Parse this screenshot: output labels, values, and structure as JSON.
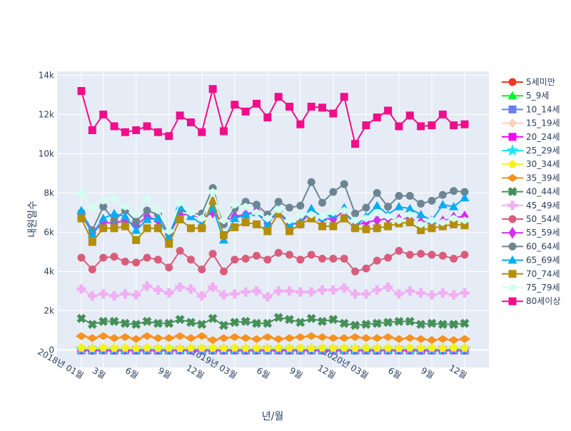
{
  "chart_data": {
    "type": "line",
    "title": "",
    "xlabel": "년/월",
    "ylabel": "내원일수",
    "ylim": [
      -900,
      14200
    ],
    "grid": true,
    "legend_position": "right",
    "x": [
      "2018-01",
      "2018-02",
      "2018-03",
      "2018-04",
      "2018-05",
      "2018-06",
      "2018-07",
      "2018-08",
      "2018-09",
      "2018-10",
      "2018-11",
      "2018-12",
      "2019-01",
      "2019-02",
      "2019-03",
      "2019-04",
      "2019-05",
      "2019-06",
      "2019-07",
      "2019-08",
      "2019-09",
      "2019-10",
      "2019-11",
      "2019-12",
      "2020-01",
      "2020-02",
      "2020-03",
      "2020-04",
      "2020-05",
      "2020-06",
      "2020-07",
      "2020-08",
      "2020-09",
      "2020-10",
      "2020-11",
      "2020-12"
    ],
    "x_ticks": [
      {
        "label": "2018년 01월",
        "index": 0
      },
      {
        "label": "3월",
        "index": 2
      },
      {
        "label": "6월",
        "index": 5
      },
      {
        "label": "9월",
        "index": 8
      },
      {
        "label": "12월",
        "index": 11
      },
      {
        "label": "2019년 03월",
        "index": 14
      },
      {
        "label": "6월",
        "index": 17
      },
      {
        "label": "9월",
        "index": 20
      },
      {
        "label": "12월",
        "index": 23
      },
      {
        "label": "2020년 03월",
        "index": 26
      },
      {
        "label": "6월",
        "index": 29
      },
      {
        "label": "9월",
        "index": 32
      },
      {
        "label": "12월",
        "index": 35
      }
    ],
    "y_ticks": [
      {
        "label": "0",
        "value": 0
      },
      {
        "label": "2k",
        "value": 2000
      },
      {
        "label": "4k",
        "value": 4000
      },
      {
        "label": "6k",
        "value": 6000
      },
      {
        "label": "8k",
        "value": 8000
      },
      {
        "label": "10k",
        "value": 10000
      },
      {
        "label": "12k",
        "value": 12000
      },
      {
        "label": "14k",
        "value": 14000
      }
    ],
    "series": [
      {
        "name": "5세미만",
        "color": "#f2361e",
        "marker": "circle",
        "values": [
          -40,
          -45,
          -35,
          -50,
          -40,
          -45,
          -40,
          -50,
          -45,
          -40,
          -40,
          -45,
          -40,
          -45,
          -40,
          -50,
          -40,
          -45,
          -40,
          -50,
          -45,
          -40,
          -40,
          -45,
          -40,
          -45,
          -40,
          -50,
          -40,
          -45,
          -40,
          -50,
          -45,
          -40,
          -40,
          -45
        ]
      },
      {
        "name": "5_9세",
        "color": "#00f52a",
        "marker": "triangle-up",
        "values": [
          -20,
          -25,
          -15,
          -30,
          -20,
          -25,
          -20,
          -30,
          -25,
          -20,
          -20,
          -25,
          -20,
          -25,
          -20,
          -30,
          -20,
          -25,
          -20,
          -30,
          -25,
          -20,
          -20,
          -25,
          -20,
          -25,
          -20,
          -30,
          -20,
          -25,
          -20,
          -30,
          -25,
          -20,
          -20,
          -25
        ]
      },
      {
        "name": "10_14세",
        "color": "#6b7df2",
        "marker": "square",
        "values": [
          -30,
          -35,
          -25,
          -40,
          -30,
          -35,
          -30,
          -40,
          -35,
          -30,
          -30,
          -35,
          -30,
          -35,
          -30,
          -40,
          -30,
          -35,
          -30,
          -40,
          -35,
          -30,
          -30,
          -35,
          -30,
          -35,
          -30,
          -40,
          -30,
          -35,
          -30,
          -40,
          -35,
          -30,
          -30,
          -35
        ]
      },
      {
        "name": "15_19세",
        "color": "#f7d2bf",
        "marker": "diamond",
        "values": [
          20,
          15,
          25,
          20,
          15,
          20,
          25,
          20,
          15,
          20,
          25,
          20,
          15,
          20,
          25,
          20,
          15,
          20,
          25,
          20,
          15,
          20,
          25,
          20,
          15,
          20,
          25,
          20,
          15,
          20,
          25,
          20,
          15,
          20,
          25,
          20
        ]
      },
      {
        "name": "20_24세",
        "color": "#f207ef",
        "marker": "square",
        "values": [
          0,
          -5,
          5,
          0,
          -5,
          0,
          5,
          0,
          -5,
          0,
          5,
          0,
          -5,
          0,
          5,
          0,
          -5,
          0,
          5,
          0,
          -5,
          0,
          5,
          0,
          -5,
          0,
          5,
          0,
          -5,
          0,
          5,
          0,
          -5,
          0,
          5,
          0
        ]
      },
      {
        "name": "25_29세",
        "color": "#18e8f5",
        "marker": "star",
        "values": [
          30,
          25,
          35,
          30,
          25,
          30,
          35,
          30,
          25,
          30,
          35,
          30,
          25,
          30,
          35,
          30,
          25,
          30,
          35,
          30,
          25,
          30,
          35,
          30,
          25,
          30,
          35,
          30,
          25,
          30,
          35,
          30,
          25,
          30,
          35,
          30
        ]
      },
      {
        "name": "30_34세",
        "color": "#f4f21e",
        "marker": "pentagon",
        "values": [
          100,
          80,
          110,
          90,
          100,
          80,
          110,
          90,
          100,
          80,
          110,
          90,
          100,
          80,
          110,
          90,
          100,
          80,
          110,
          90,
          100,
          80,
          110,
          90,
          100,
          80,
          110,
          90,
          100,
          80,
          110,
          90,
          100,
          80,
          110,
          90
        ]
      },
      {
        "name": "35_39세",
        "color": "#f69222",
        "marker": "diamond-wide",
        "values": [
          700,
          600,
          700,
          600,
          650,
          550,
          700,
          600,
          600,
          700,
          600,
          700,
          500,
          600,
          650,
          600,
          550,
          650,
          550,
          600,
          650,
          700,
          650,
          600,
          600,
          650,
          600,
          600,
          650,
          550,
          600,
          550,
          500,
          550,
          500,
          550
        ]
      },
      {
        "name": "40_44세",
        "color": "#459058",
        "marker": "cross",
        "values": [
          1600,
          1300,
          1450,
          1450,
          1350,
          1300,
          1450,
          1350,
          1350,
          1550,
          1400,
          1300,
          1600,
          1250,
          1400,
          1450,
          1350,
          1350,
          1650,
          1550,
          1400,
          1600,
          1450,
          1550,
          1350,
          1250,
          1300,
          1350,
          1400,
          1450,
          1450,
          1300,
          1350,
          1300,
          1300,
          1350
        ]
      },
      {
        "name": "45_49세",
        "color": "#f2aef2",
        "marker": "cross-x",
        "values": [
          3100,
          2750,
          2850,
          2750,
          2850,
          2800,
          3250,
          3050,
          2900,
          3200,
          3100,
          2750,
          3200,
          2800,
          2850,
          2950,
          3000,
          2700,
          3000,
          3000,
          2950,
          2950,
          3050,
          3050,
          3150,
          2850,
          2850,
          3050,
          3200,
          2850,
          3000,
          2900,
          2800,
          2900,
          2800,
          2900
        ]
      },
      {
        "name": "50_54세",
        "color": "#d95d7b",
        "marker": "circle",
        "values": [
          4700,
          4100,
          4700,
          4750,
          4500,
          4450,
          4700,
          4600,
          4200,
          5050,
          4600,
          4100,
          4900,
          4000,
          4600,
          4650,
          4800,
          4600,
          4950,
          4850,
          4600,
          4850,
          4650,
          4650,
          4650,
          4000,
          4150,
          4550,
          4700,
          5050,
          4850,
          4900,
          4850,
          4800,
          4650,
          4850
        ]
      },
      {
        "name": "55_59세",
        "color": "#d32ef2",
        "marker": "diamond-tall",
        "values": [
          6900,
          5950,
          6500,
          6450,
          6600,
          6350,
          6800,
          6600,
          5850,
          6900,
          6900,
          6700,
          7000,
          6500,
          6800,
          6900,
          7100,
          6450,
          7000,
          6400,
          6450,
          7050,
          6700,
          6650,
          7100,
          6350,
          6500,
          6600,
          6700,
          6650,
          6750,
          6500,
          6550,
          6550,
          6750,
          6800
        ]
      },
      {
        "name": "60_64세",
        "color": "#6d8592",
        "marker": "circle",
        "values": [
          7000,
          6100,
          7300,
          6600,
          7100,
          6550,
          7100,
          6900,
          5900,
          7150,
          6900,
          6950,
          8250,
          6400,
          7200,
          7550,
          7400,
          6900,
          7550,
          7250,
          7350,
          8550,
          7500,
          8050,
          8450,
          6950,
          7250,
          8000,
          7300,
          7850,
          7850,
          7450,
          7600,
          7900,
          8100,
          8050
        ]
      },
      {
        "name": "65_69세",
        "color": "#08acf2",
        "marker": "triangle-up",
        "values": [
          7100,
          5900,
          6700,
          6950,
          6800,
          6100,
          6650,
          6700,
          5750,
          7300,
          6800,
          6400,
          7250,
          5600,
          6700,
          6900,
          7000,
          6400,
          7200,
          6400,
          6500,
          7200,
          6750,
          6900,
          7250,
          6300,
          6800,
          7350,
          6900,
          7300,
          7200,
          6900,
          6600,
          7400,
          7300,
          7750
        ]
      },
      {
        "name": "70_74세",
        "color": "#b48e08",
        "marker": "square",
        "values": [
          6700,
          5500,
          6200,
          6200,
          6300,
          5600,
          6200,
          6200,
          5400,
          6650,
          6200,
          6200,
          7600,
          5850,
          6250,
          6500,
          6400,
          6050,
          6950,
          6050,
          6400,
          6700,
          6300,
          6300,
          6700,
          6200,
          6150,
          6200,
          6300,
          6450,
          6500,
          6100,
          6200,
          6300,
          6400,
          6350
        ]
      },
      {
        "name": "75_79세",
        "color": "#d4fff0",
        "marker": "diamond-wide",
        "values": [
          8000,
          7250,
          7600,
          7750,
          7300,
          6900,
          7700,
          7100,
          6050,
          7500,
          7000,
          6700,
          8050,
          6600,
          7400,
          7300,
          7000,
          6700,
          7150,
          6600,
          6900,
          6900,
          6800,
          7000,
          7100,
          6600,
          6700,
          7000,
          6800,
          6600,
          6900,
          6400,
          6600,
          6500,
          6700,
          6600
        ]
      },
      {
        "name": "80세이상",
        "color": "#f20d8a",
        "marker": "square",
        "values": [
          13200,
          11200,
          12000,
          11400,
          11100,
          11200,
          11400,
          11100,
          10900,
          11950,
          11600,
          11100,
          13300,
          11150,
          12500,
          12150,
          12550,
          11850,
          12900,
          12400,
          11500,
          12400,
          12350,
          12050,
          12900,
          10500,
          11450,
          11850,
          12200,
          11400,
          11950,
          11400,
          11450,
          12000,
          11450,
          11500
        ]
      }
    ]
  }
}
